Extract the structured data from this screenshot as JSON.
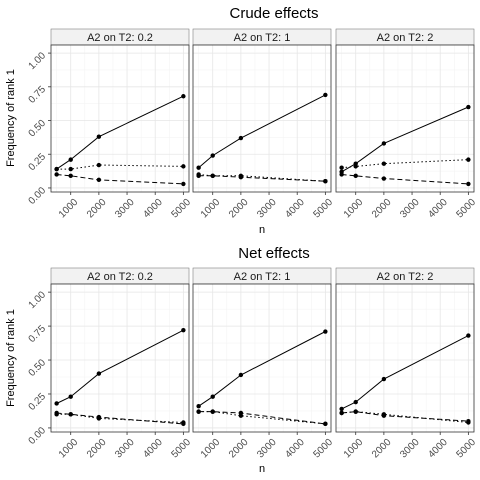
{
  "chart_data": [
    {
      "type": "line",
      "title": "Crude effects",
      "xlabel": "n",
      "ylabel": "Frequency of rank 1",
      "x": [
        500,
        1000,
        2000,
        5000
      ],
      "xlim": [
        300,
        5200
      ],
      "ylim": [
        -0.03,
        1.06
      ],
      "x_ticks": [
        1000,
        2000,
        3000,
        4000,
        5000
      ],
      "x_tick_labels": [
        "1000",
        "2000",
        "3000",
        "4000",
        "5000"
      ],
      "y_ticks": [
        0,
        0.25,
        0.5,
        0.75,
        1
      ],
      "y_tick_labels": [
        "0.00",
        "0.25",
        "0.50",
        "0.75",
        "1.00"
      ],
      "grid": true,
      "panels": [
        {
          "label": "A2 on T2: 0.2",
          "series": [
            {
              "linestyle": "solid",
              "values": [
                0.14,
                0.21,
                0.38,
                0.68
              ]
            },
            {
              "linestyle": "dotted",
              "values": [
                0.14,
                0.14,
                0.17,
                0.16
              ]
            },
            {
              "linestyle": "dashed",
              "values": [
                0.1,
                0.09,
                0.06,
                0.03
              ]
            }
          ]
        },
        {
          "label": "A2 on T2: 1",
          "series": [
            {
              "linestyle": "solid",
              "values": [
                0.15,
                0.24,
                0.37,
                0.69
              ]
            },
            {
              "linestyle": "dotted",
              "values": [
                0.1,
                0.09,
                0.09,
                0.05
              ]
            },
            {
              "linestyle": "dashed",
              "values": [
                0.09,
                0.09,
                0.08,
                0.05
              ]
            }
          ]
        },
        {
          "label": "A2 on T2: 2",
          "series": [
            {
              "linestyle": "solid",
              "values": [
                0.12,
                0.18,
                0.33,
                0.6
              ]
            },
            {
              "linestyle": "dotted",
              "values": [
                0.15,
                0.16,
                0.18,
                0.21
              ]
            },
            {
              "linestyle": "dashed",
              "values": [
                0.1,
                0.09,
                0.07,
                0.03
              ]
            }
          ]
        }
      ]
    },
    {
      "type": "line",
      "title": "Net effects",
      "xlabel": "n",
      "ylabel": "Frequency of rank 1",
      "x": [
        500,
        1000,
        2000,
        5000
      ],
      "xlim": [
        300,
        5200
      ],
      "ylim": [
        -0.03,
        1.06
      ],
      "x_ticks": [
        1000,
        2000,
        3000,
        4000,
        5000
      ],
      "x_tick_labels": [
        "1000",
        "2000",
        "3000",
        "4000",
        "5000"
      ],
      "y_ticks": [
        0,
        0.25,
        0.5,
        0.75,
        1
      ],
      "y_tick_labels": [
        "0.00",
        "0.25",
        "0.50",
        "0.75",
        "1.00"
      ],
      "grid": true,
      "panels": [
        {
          "label": "A2 on T2: 0.2",
          "series": [
            {
              "linestyle": "solid",
              "values": [
                0.18,
                0.23,
                0.4,
                0.72
              ]
            },
            {
              "linestyle": "dotted",
              "values": [
                0.1,
                0.1,
                0.07,
                0.04
              ]
            },
            {
              "linestyle": "dashed",
              "values": [
                0.11,
                0.1,
                0.08,
                0.03
              ]
            }
          ]
        },
        {
          "label": "A2 on T2: 1",
          "series": [
            {
              "linestyle": "solid",
              "values": [
                0.16,
                0.23,
                0.39,
                0.71
              ]
            },
            {
              "linestyle": "dotted",
              "values": [
                0.12,
                0.12,
                0.09,
                0.03
              ]
            },
            {
              "linestyle": "dashed",
              "values": [
                0.12,
                0.12,
                0.11,
                0.03
              ]
            }
          ]
        },
        {
          "label": "A2 on T2: 2",
          "series": [
            {
              "linestyle": "solid",
              "values": [
                0.14,
                0.19,
                0.36,
                0.68
              ]
            },
            {
              "linestyle": "dotted",
              "values": [
                0.11,
                0.12,
                0.1,
                0.04
              ]
            },
            {
              "linestyle": "dashed",
              "values": [
                0.11,
                0.12,
                0.09,
                0.05
              ]
            }
          ]
        }
      ]
    }
  ]
}
